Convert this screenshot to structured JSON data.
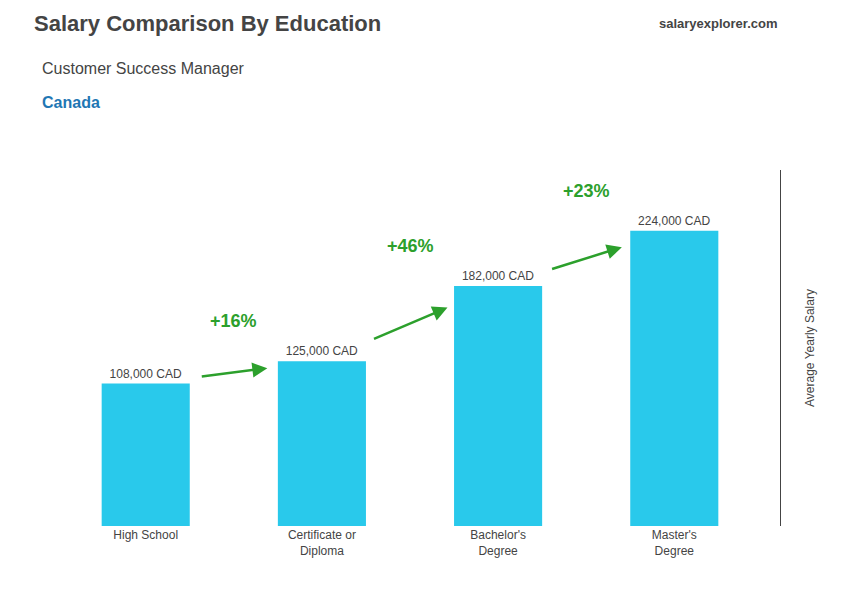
{
  "chart_data": {
    "type": "bar",
    "title": "Salary Comparison By Education",
    "subtitle": "Customer Success Manager",
    "ylabel": "Average Yearly Salary",
    "categories": [
      "High School",
      "Certificate or\nDiploma",
      "Bachelor's\nDegree",
      "Master's\nDegree"
    ],
    "values": [
      108000,
      125000,
      182000,
      224000
    ],
    "value_labels": [
      "108,000 CAD",
      "125,000 CAD",
      "182,000 CAD",
      "224,000 CAD"
    ],
    "data_labels": true,
    "color": "#29c9eb",
    "ylim": [
      0,
      270000
    ],
    "grid": false,
    "tick_labels": "x",
    "annotations": [
      {
        "text": "Canada"
      },
      {
        "text": "salaryexplorer.com"
      },
      {
        "text": "+16%",
        "from": "High School",
        "to": "Certificate or\nDiploma"
      },
      {
        "text": "+46%",
        "from": "Certificate or\nDiploma",
        "to": "Bachelor's\nDegree"
      },
      {
        "text": "+23%",
        "from": "Bachelor's\nDegree",
        "to": "Master's\nDegree"
      }
    ]
  }
}
